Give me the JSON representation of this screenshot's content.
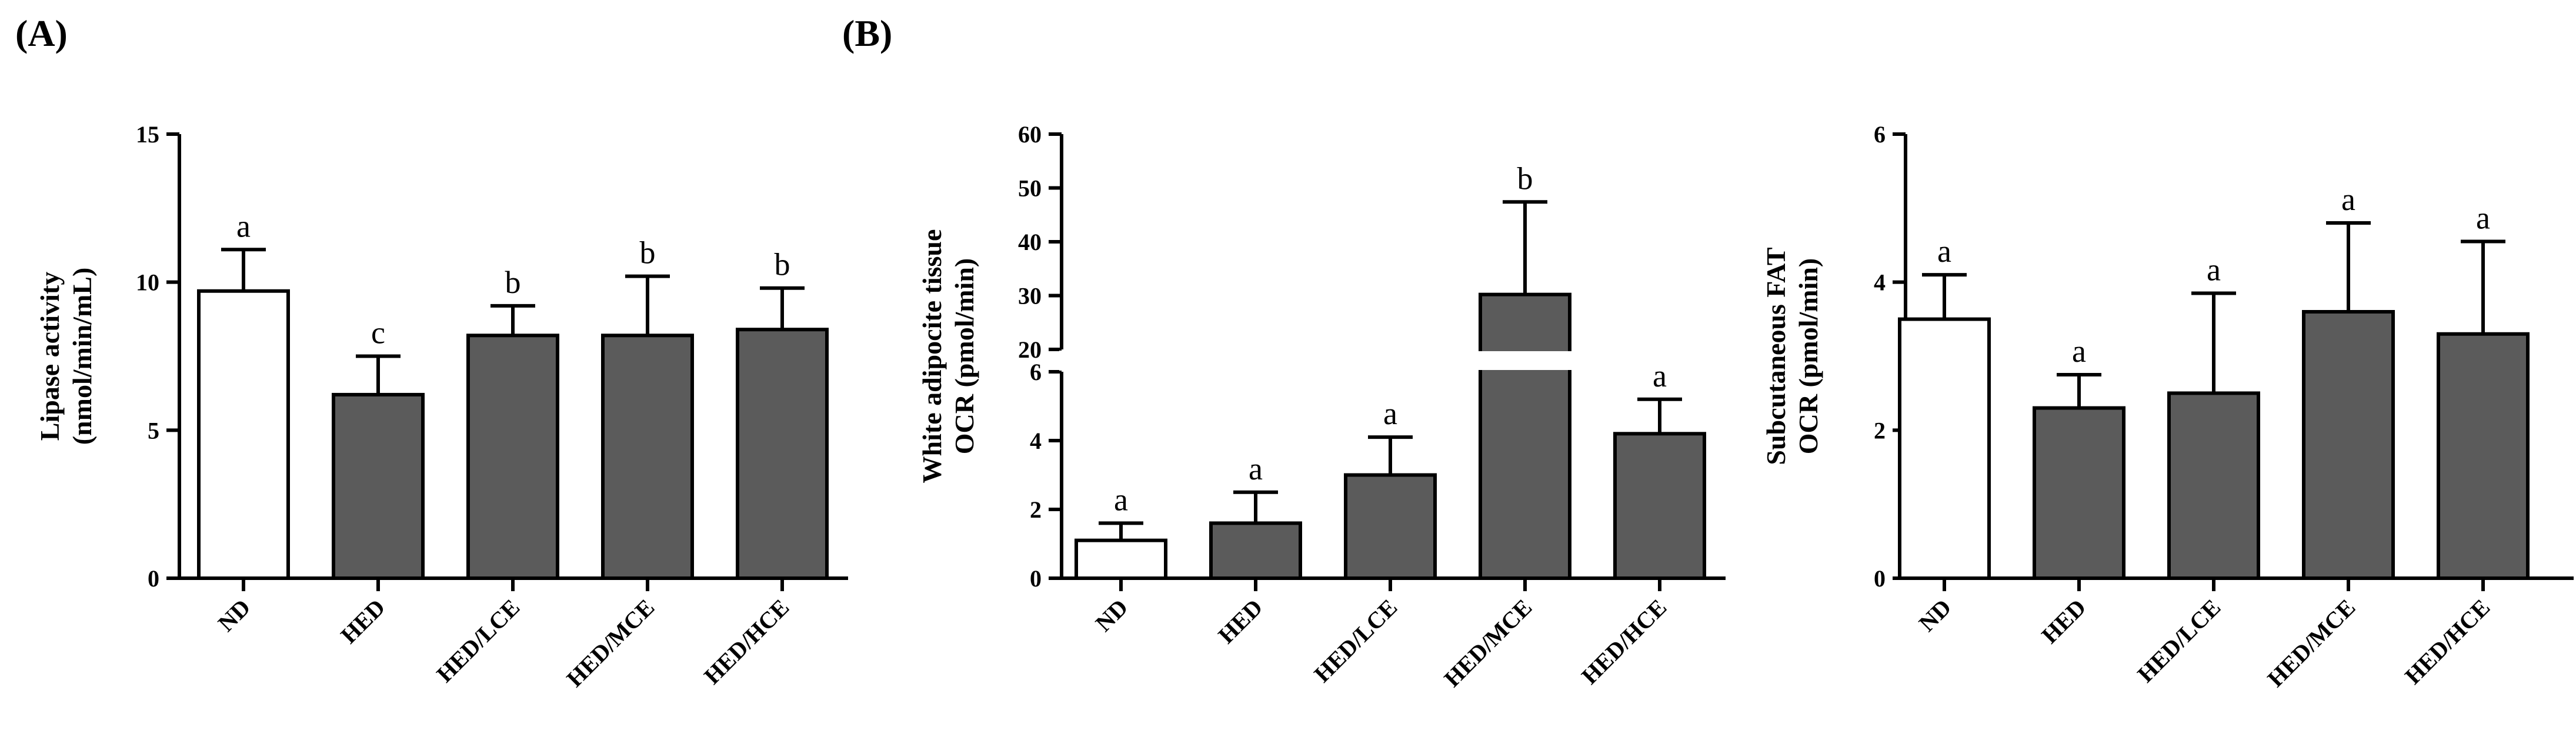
{
  "panel_labels": {
    "a": "(A)",
    "b": "(B)"
  },
  "colors": {
    "control_fill": "#ffffff",
    "treatment_fill": "#5b5b5b",
    "stroke": "#000000",
    "background": "#ffffff"
  },
  "chart_data": [
    {
      "type": "bar",
      "id": "lipase",
      "categories": [
        "ND",
        "HED",
        "HED/LCE",
        "HED/MCE",
        "HED/HCE"
      ],
      "values": [
        9.7,
        6.2,
        8.2,
        8.2,
        8.4
      ],
      "errors": [
        1.4,
        1.3,
        1.0,
        2.0,
        1.4
      ],
      "significance": [
        "a",
        "c",
        "b",
        "b",
        "b"
      ],
      "ylabel_lines": [
        "Lipase activity",
        "(nmol/min/mL)"
      ],
      "ylim": [
        0,
        15
      ],
      "yticks": [
        0,
        5,
        10,
        15
      ],
      "grid": false,
      "legend": "none"
    },
    {
      "type": "bar",
      "id": "wat_ocr",
      "categories": [
        "ND",
        "HED",
        "HED/LCE",
        "HED/MCE",
        "HED/HCE"
      ],
      "values": [
        1.1,
        1.6,
        3.0,
        30.2,
        4.2
      ],
      "errors": [
        0.5,
        0.9,
        1.1,
        17.2,
        1.0
      ],
      "significance": [
        "a",
        "a",
        "a",
        "b",
        "a"
      ],
      "ylabel_lines": [
        "White adipocite tissue",
        "OCR (pmol/min)"
      ],
      "ylim": [
        0,
        60
      ],
      "axis_break": {
        "lower_max": 6,
        "upper_min": 20
      },
      "yticks_lower": [
        0,
        2,
        4,
        6
      ],
      "yticks_upper": [
        20,
        30,
        40,
        50,
        60
      ],
      "grid": false,
      "legend": "none"
    },
    {
      "type": "bar",
      "id": "sub_fat_ocr",
      "categories": [
        "ND",
        "HED",
        "HED/LCE",
        "HED/MCE",
        "HED/HCE"
      ],
      "values": [
        3.5,
        2.3,
        2.5,
        3.6,
        3.3
      ],
      "errors": [
        0.6,
        0.45,
        1.35,
        1.2,
        1.25
      ],
      "significance": [
        "a",
        "a",
        "a",
        "a",
        "a"
      ],
      "ylabel_lines": [
        "Subcutaneous FAT",
        "OCR (pmol/min)"
      ],
      "ylim": [
        0,
        6
      ],
      "yticks": [
        0,
        2,
        4,
        6
      ],
      "grid": false,
      "legend": "none"
    }
  ]
}
